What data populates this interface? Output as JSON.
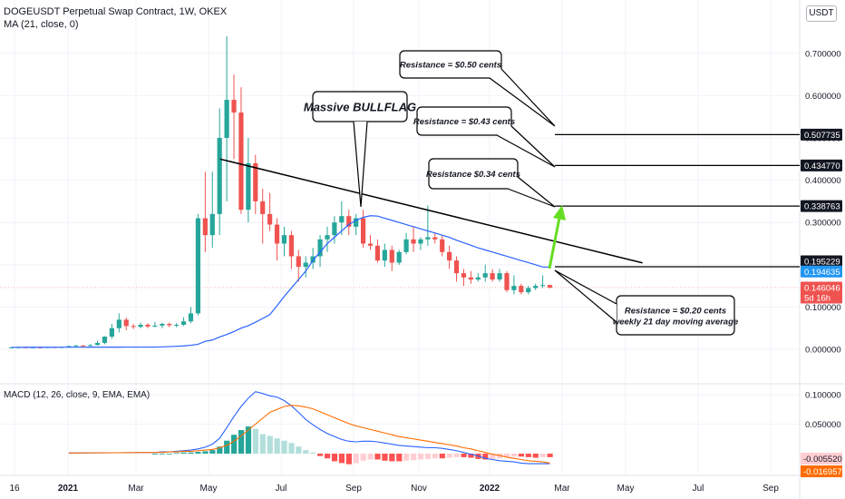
{
  "header": {
    "title": "DOGEUSDT Perpetual Swap Contract, 1W, OKEX",
    "indicator": "MA (21, close, 0)",
    "currency": "USDT"
  },
  "macd_title": "MACD (12, 26, close, 9, EMA, EMA)",
  "colors": {
    "up": "#26a69a",
    "down": "#ef5350",
    "ma": "#2962ff",
    "macd_line": "#2962ff",
    "signal_line": "#ff6d00",
    "hist_up_strong": "#26a69a",
    "hist_up_weak": "#b2dfdb",
    "hist_down_strong": "#ff5252",
    "hist_down_weak": "#ffcdd2",
    "annotation_arrow": "#66dd22"
  },
  "chart_data": {
    "type": "candlestick",
    "symbol": "DOGEUSDT",
    "timeframe": "1W",
    "price_axis_ticks": [
      "0.700000",
      "0.600000",
      "0.500000",
      "0.400000",
      "0.300000",
      "0.200000",
      "0.100000",
      "0.000000"
    ],
    "macd_axis_ticks": [
      "0.100000",
      "0.050000"
    ],
    "time_axis_ticks": [
      "16",
      "2021",
      "Mar",
      "May",
      "Jul",
      "Sep",
      "Nov",
      "2022",
      "Mar",
      "May",
      "Jul",
      "Sep"
    ],
    "price_tags": [
      {
        "text": "0.507735",
        "style": "dark"
      },
      {
        "text": "0.434770",
        "style": "dark"
      },
      {
        "text": "0.338763",
        "style": "dark"
      },
      {
        "text": "0.195229",
        "style": "dark"
      },
      {
        "text": "0.194635",
        "style": "blue"
      },
      {
        "text": "0.146046",
        "style": "red",
        "sub": "5d 16h"
      }
    ],
    "macd_tags": [
      {
        "text": "-0.005520",
        "style": "pink"
      },
      {
        "text": "-0.016957",
        "style": "orange"
      }
    ],
    "candles": [
      [
        0.0046,
        0.0049,
        0.0042,
        0.0047
      ],
      [
        0.0047,
        0.0052,
        0.0044,
        0.0049
      ],
      [
        0.0049,
        0.0052,
        0.0044,
        0.0046
      ],
      [
        0.0046,
        0.005,
        0.0043,
        0.0047
      ],
      [
        0.0047,
        0.005,
        0.0043,
        0.0045
      ],
      [
        0.0045,
        0.0055,
        0.0043,
        0.0053
      ],
      [
        0.0053,
        0.0058,
        0.0046,
        0.0049
      ],
      [
        0.0049,
        0.006,
        0.0046,
        0.0055
      ],
      [
        0.0055,
        0.0085,
        0.0053,
        0.0077
      ],
      [
        0.0077,
        0.01,
        0.007,
        0.009
      ],
      [
        0.009,
        0.01,
        0.007,
        0.008
      ],
      [
        0.008,
        0.012,
        0.007,
        0.01
      ],
      [
        0.01,
        0.02,
        0.009,
        0.015
      ],
      [
        0.015,
        0.031,
        0.012,
        0.03
      ],
      [
        0.03,
        0.06,
        0.025,
        0.05
      ],
      [
        0.05,
        0.085,
        0.04,
        0.07
      ],
      [
        0.07,
        0.075,
        0.045,
        0.055
      ],
      [
        0.055,
        0.06,
        0.048,
        0.053
      ],
      [
        0.053,
        0.063,
        0.05,
        0.058
      ],
      [
        0.058,
        0.062,
        0.05,
        0.054
      ],
      [
        0.054,
        0.065,
        0.052,
        0.056
      ],
      [
        0.056,
        0.063,
        0.05,
        0.06
      ],
      [
        0.06,
        0.063,
        0.052,
        0.057
      ],
      [
        0.057,
        0.062,
        0.052,
        0.058
      ],
      [
        0.058,
        0.076,
        0.055,
        0.066
      ],
      [
        0.066,
        0.1,
        0.062,
        0.085
      ],
      [
        0.085,
        0.32,
        0.08,
        0.31
      ],
      [
        0.31,
        0.42,
        0.23,
        0.27
      ],
      [
        0.27,
        0.42,
        0.24,
        0.32
      ],
      [
        0.32,
        0.57,
        0.27,
        0.5
      ],
      [
        0.5,
        0.74,
        0.35,
        0.59
      ],
      [
        0.59,
        0.65,
        0.45,
        0.56
      ],
      [
        0.56,
        0.62,
        0.32,
        0.33
      ],
      [
        0.33,
        0.5,
        0.3,
        0.44
      ],
      [
        0.44,
        0.46,
        0.32,
        0.35
      ],
      [
        0.35,
        0.38,
        0.25,
        0.32
      ],
      [
        0.32,
        0.37,
        0.28,
        0.295
      ],
      [
        0.295,
        0.31,
        0.21,
        0.25
      ],
      [
        0.25,
        0.29,
        0.22,
        0.27
      ],
      [
        0.27,
        0.28,
        0.19,
        0.22
      ],
      [
        0.22,
        0.235,
        0.16,
        0.195
      ],
      [
        0.195,
        0.22,
        0.17,
        0.205
      ],
      [
        0.205,
        0.24,
        0.19,
        0.22
      ],
      [
        0.22,
        0.27,
        0.195,
        0.26
      ],
      [
        0.26,
        0.29,
        0.23,
        0.27
      ],
      [
        0.27,
        0.315,
        0.25,
        0.3
      ],
      [
        0.3,
        0.35,
        0.27,
        0.315
      ],
      [
        0.315,
        0.33,
        0.27,
        0.29
      ],
      [
        0.29,
        0.32,
        0.27,
        0.31
      ],
      [
        0.31,
        0.33,
        0.24,
        0.25
      ],
      [
        0.25,
        0.27,
        0.235,
        0.245
      ],
      [
        0.245,
        0.26,
        0.205,
        0.21
      ],
      [
        0.21,
        0.25,
        0.195,
        0.235
      ],
      [
        0.235,
        0.245,
        0.185,
        0.205
      ],
      [
        0.205,
        0.235,
        0.2,
        0.23
      ],
      [
        0.23,
        0.275,
        0.225,
        0.26
      ],
      [
        0.26,
        0.29,
        0.23,
        0.25
      ],
      [
        0.25,
        0.265,
        0.235,
        0.26
      ],
      [
        0.26,
        0.34,
        0.245,
        0.265
      ],
      [
        0.265,
        0.275,
        0.25,
        0.26
      ],
      [
        0.26,
        0.27,
        0.22,
        0.23
      ],
      [
        0.23,
        0.245,
        0.19,
        0.21
      ],
      [
        0.21,
        0.22,
        0.16,
        0.18
      ],
      [
        0.18,
        0.19,
        0.15,
        0.17
      ],
      [
        0.17,
        0.185,
        0.155,
        0.165
      ],
      [
        0.165,
        0.18,
        0.16,
        0.17
      ],
      [
        0.17,
        0.2,
        0.16,
        0.18
      ],
      [
        0.18,
        0.19,
        0.16,
        0.165
      ],
      [
        0.165,
        0.19,
        0.16,
        0.18
      ],
      [
        0.18,
        0.185,
        0.135,
        0.14
      ],
      [
        0.14,
        0.175,
        0.13,
        0.15
      ],
      [
        0.15,
        0.155,
        0.13,
        0.135
      ],
      [
        0.135,
        0.15,
        0.13,
        0.145
      ],
      [
        0.145,
        0.155,
        0.14,
        0.15
      ],
      [
        0.15,
        0.175,
        0.145,
        0.152
      ],
      [
        0.152,
        0.153,
        0.144,
        0.146
      ]
    ],
    "ma21_start_index": 20,
    "ma21": [
      0.0052,
      0.0058,
      0.0063,
      0.0071,
      0.008,
      0.0095,
      0.012,
      0.019,
      0.022,
      0.029,
      0.035,
      0.042,
      0.05,
      0.056,
      0.064,
      0.073,
      0.082,
      0.103,
      0.125,
      0.145,
      0.165,
      0.185,
      0.21,
      0.23,
      0.25,
      0.265,
      0.28,
      0.295,
      0.305,
      0.312,
      0.316,
      0.315,
      0.31,
      0.305,
      0.3,
      0.295,
      0.29,
      0.285,
      0.28,
      0.275,
      0.27,
      0.265,
      0.258,
      0.252,
      0.246,
      0.24,
      0.235,
      0.23,
      0.225,
      0.22,
      0.215,
      0.21,
      0.205,
      0.2,
      0.1946,
      0.1946
    ],
    "macd": {
      "hist": [
        0.0,
        0.0,
        0.0,
        0.001,
        0.002,
        0.002,
        0.003,
        0.004,
        0.006,
        0.012,
        0.022,
        0.032,
        0.04,
        0.046,
        0.042,
        0.033,
        0.03,
        0.026,
        0.022,
        0.018,
        0.012,
        0.006,
        0.002,
        -0.004,
        -0.008,
        -0.013,
        -0.016,
        -0.018,
        -0.016,
        -0.012,
        -0.01,
        -0.01,
        -0.012,
        -0.013,
        -0.013,
        -0.012,
        -0.011,
        -0.01,
        -0.009,
        -0.008,
        -0.008,
        -0.007,
        -0.006,
        -0.006,
        -0.007,
        -0.009,
        -0.01,
        -0.009,
        -0.008,
        -0.006,
        -0.005,
        -0.005,
        -0.006,
        -0.007,
        -0.006,
        -0.006
      ],
      "macd_line": [
        0.002,
        0.003,
        0.003,
        0.004,
        0.005,
        0.006,
        0.008,
        0.011,
        0.016,
        0.026,
        0.044,
        0.063,
        0.08,
        0.094,
        0.105,
        0.102,
        0.098,
        0.096,
        0.09,
        0.081,
        0.07,
        0.058,
        0.049,
        0.041,
        0.034,
        0.029,
        0.024,
        0.021,
        0.02,
        0.021,
        0.021,
        0.02,
        0.018,
        0.016,
        0.014,
        0.013,
        0.012,
        0.011,
        0.01,
        0.01,
        0.009,
        0.007,
        0.005,
        0.002,
        -0.001,
        -0.004,
        -0.008,
        -0.01,
        -0.012,
        -0.013,
        -0.014,
        -0.016,
        -0.017,
        -0.017,
        -0.017,
        -0.017
      ],
      "signal_line": [
        0.002,
        0.002,
        0.003,
        0.003,
        0.004,
        0.004,
        0.005,
        0.006,
        0.007,
        0.01,
        0.014,
        0.021,
        0.03,
        0.04,
        0.05,
        0.06,
        0.07,
        0.075,
        0.08,
        0.082,
        0.081,
        0.079,
        0.076,
        0.071,
        0.066,
        0.061,
        0.056,
        0.051,
        0.047,
        0.044,
        0.041,
        0.038,
        0.035,
        0.032,
        0.029,
        0.027,
        0.025,
        0.023,
        0.021,
        0.019,
        0.017,
        0.015,
        0.013,
        0.01,
        0.008,
        0.005,
        0.002,
        -0.001,
        -0.003,
        -0.006,
        -0.008,
        -0.01,
        -0.012,
        -0.013,
        -0.014,
        -0.016
      ]
    },
    "annotations": [
      {
        "text": "Massive BULLFLAG",
        "size": "large"
      },
      {
        "text": "Resistance = $0.50 cents",
        "size": "small"
      },
      {
        "text": "Resistance = $0.43 cents",
        "size": "small"
      },
      {
        "text": "Resistance $0.34 cents",
        "size": "small"
      },
      {
        "text": "Resistance = $0.20 cents",
        "text2": "weekly 21 day moving average",
        "size": "small"
      }
    ],
    "resistance_levels": [
      0.507735,
      0.43477,
      0.338763,
      0.195229
    ],
    "trendline": {
      "from": [
        29,
        0.45
      ],
      "to": [
        86,
        0.198
      ]
    },
    "current_price": 0.146046
  }
}
